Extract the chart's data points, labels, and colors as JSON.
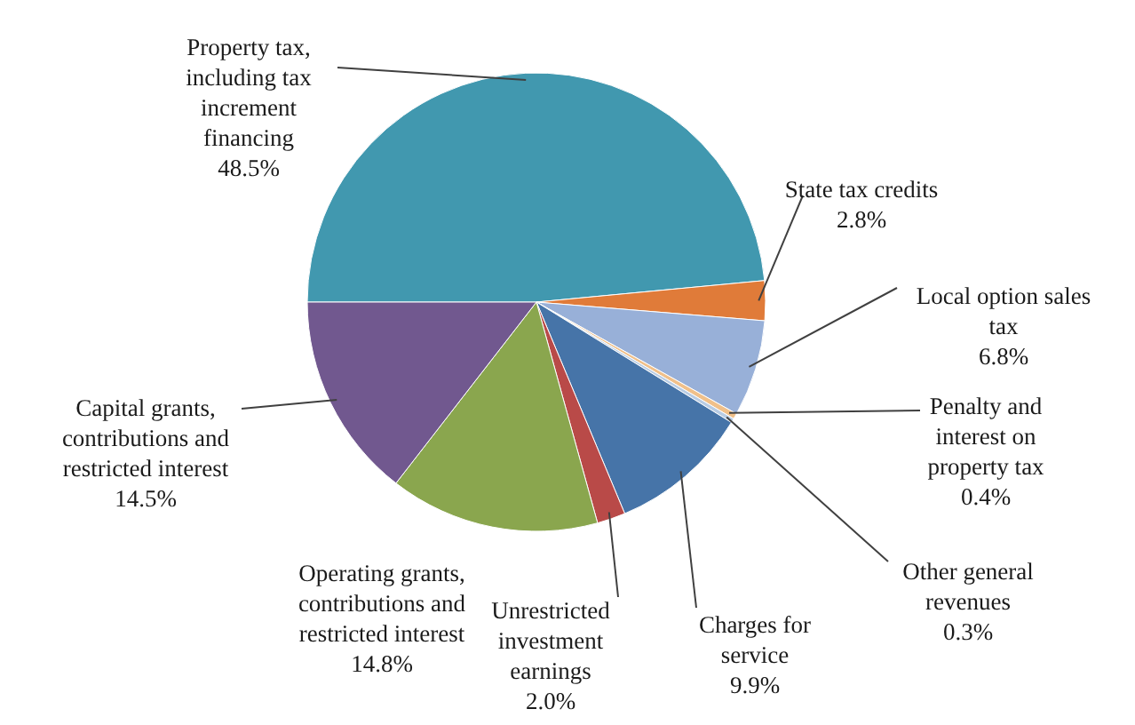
{
  "chart_data": {
    "type": "pie",
    "categories": [
      "Property tax, including tax increment financing",
      "State tax credits",
      "Local option sales tax",
      "Penalty and interest on property tax",
      "Other general revenues",
      "Charges for service",
      "Unrestricted investment earnings",
      "Operating grants, contributions and restricted interest",
      "Capital grants, contributions and restricted interest"
    ],
    "values": [
      48.5,
      2.8,
      6.8,
      0.4,
      0.3,
      9.9,
      2.0,
      14.8,
      14.5
    ],
    "value_labels": [
      "48.5%",
      "2.8%",
      "6.8%",
      "0.4%",
      "0.3%",
      "9.9%",
      "2.0%",
      "14.8%",
      "14.5%"
    ],
    "colors": [
      "#4198af",
      "#e07b39",
      "#98b0d8",
      "#f0c08a",
      "#b8cce4",
      "#4674a8",
      "#b94a48",
      "#8aa64e",
      "#71588f"
    ]
  }
}
